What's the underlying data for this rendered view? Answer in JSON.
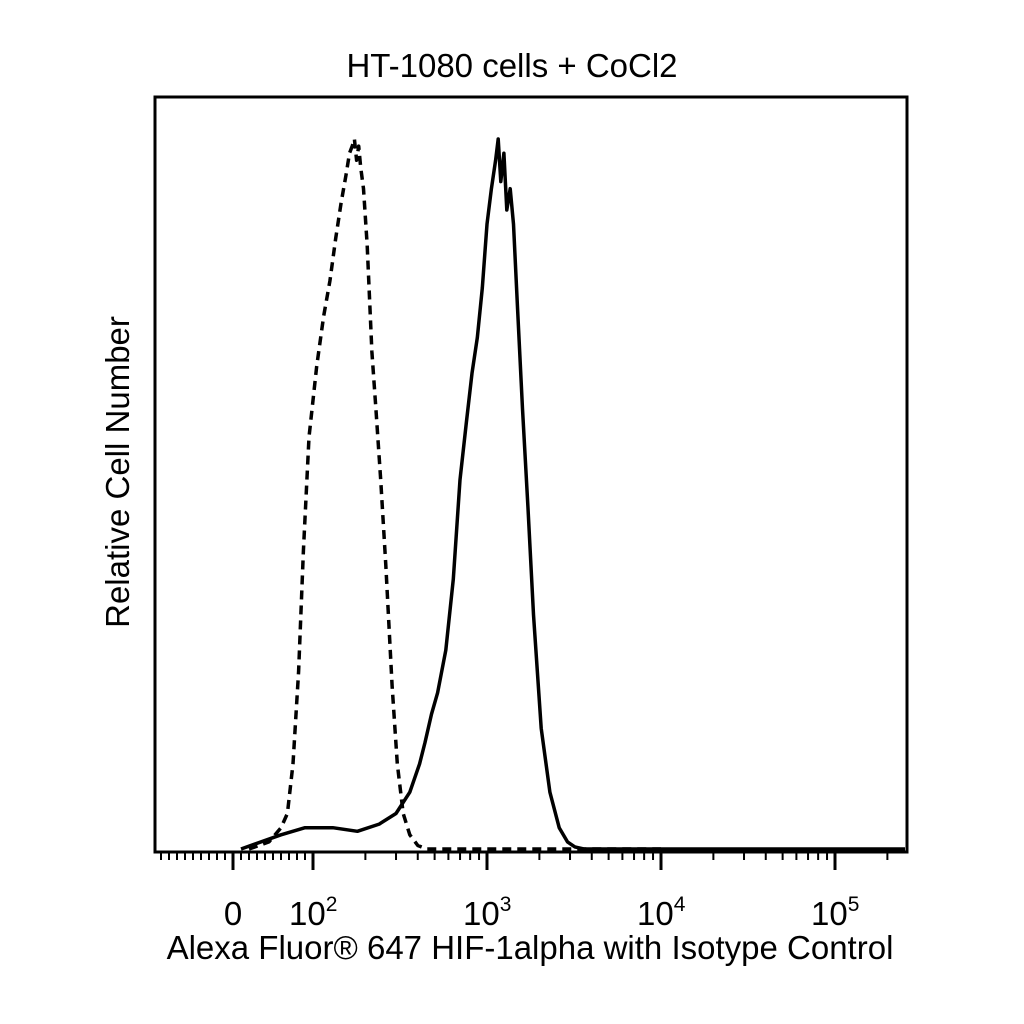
{
  "chart_data": {
    "type": "line",
    "title": "HT-1080 cells + CoCl2",
    "xlabel": "Alexa Fluor® 647 HIF-1alpha with Isotype Control",
    "ylabel": "Relative Cell Number",
    "x_scale": "biexponential (log above 10^2)",
    "x_ticks": [
      {
        "value": 0,
        "label": "0"
      },
      {
        "value": 100,
        "base": "10",
        "exp": "2"
      },
      {
        "value": 1000,
        "base": "10",
        "exp": "3"
      },
      {
        "value": 10000,
        "base": "10",
        "exp": "4"
      },
      {
        "value": 100000,
        "base": "10",
        "exp": "5"
      }
    ],
    "xlim": [
      -40,
      300000
    ],
    "ylim": [
      0,
      100
    ],
    "grid": false,
    "legend": "none",
    "series": [
      {
        "style": "dashed",
        "color": "#000000",
        "points": [
          [
            20,
            0
          ],
          [
            45,
            1
          ],
          [
            60,
            3
          ],
          [
            68,
            5
          ],
          [
            75,
            12
          ],
          [
            82,
            25
          ],
          [
            88,
            42
          ],
          [
            95,
            58
          ],
          [
            105,
            68
          ],
          [
            115,
            75
          ],
          [
            125,
            80
          ],
          [
            135,
            86
          ],
          [
            145,
            91
          ],
          [
            155,
            95
          ],
          [
            162,
            98
          ],
          [
            168,
            99
          ],
          [
            173,
            100
          ],
          [
            178,
            97
          ],
          [
            183,
            99
          ],
          [
            188,
            96
          ],
          [
            195,
            93
          ],
          [
            205,
            85
          ],
          [
            218,
            70
          ],
          [
            230,
            62
          ],
          [
            245,
            52
          ],
          [
            262,
            40
          ],
          [
            285,
            23
          ],
          [
            305,
            12
          ],
          [
            330,
            5
          ],
          [
            360,
            2
          ],
          [
            400,
            0.5
          ],
          [
            450,
            0
          ],
          [
            10000,
            0
          ]
        ]
      },
      {
        "style": "solid",
        "color": "#000000",
        "points": [
          [
            10,
            0
          ],
          [
            60,
            2
          ],
          [
            90,
            3
          ],
          [
            130,
            3
          ],
          [
            180,
            2.5
          ],
          [
            240,
            3.5
          ],
          [
            300,
            5
          ],
          [
            360,
            8
          ],
          [
            410,
            12
          ],
          [
            440,
            15
          ],
          [
            480,
            19
          ],
          [
            520,
            22
          ],
          [
            580,
            28
          ],
          [
            640,
            38
          ],
          [
            700,
            52
          ],
          [
            760,
            60
          ],
          [
            820,
            67
          ],
          [
            880,
            72
          ],
          [
            940,
            79
          ],
          [
            1000,
            88
          ],
          [
            1060,
            93
          ],
          [
            1120,
            97
          ],
          [
            1160,
            100
          ],
          [
            1200,
            94
          ],
          [
            1250,
            98
          ],
          [
            1300,
            90
          ],
          [
            1360,
            93
          ],
          [
            1420,
            88
          ],
          [
            1500,
            76
          ],
          [
            1600,
            62
          ],
          [
            1720,
            48
          ],
          [
            1850,
            33
          ],
          [
            2050,
            17
          ],
          [
            2300,
            8
          ],
          [
            2600,
            3
          ],
          [
            2900,
            1
          ],
          [
            3200,
            0.3
          ],
          [
            3600,
            0
          ],
          [
            300000,
            0
          ]
        ]
      }
    ]
  }
}
